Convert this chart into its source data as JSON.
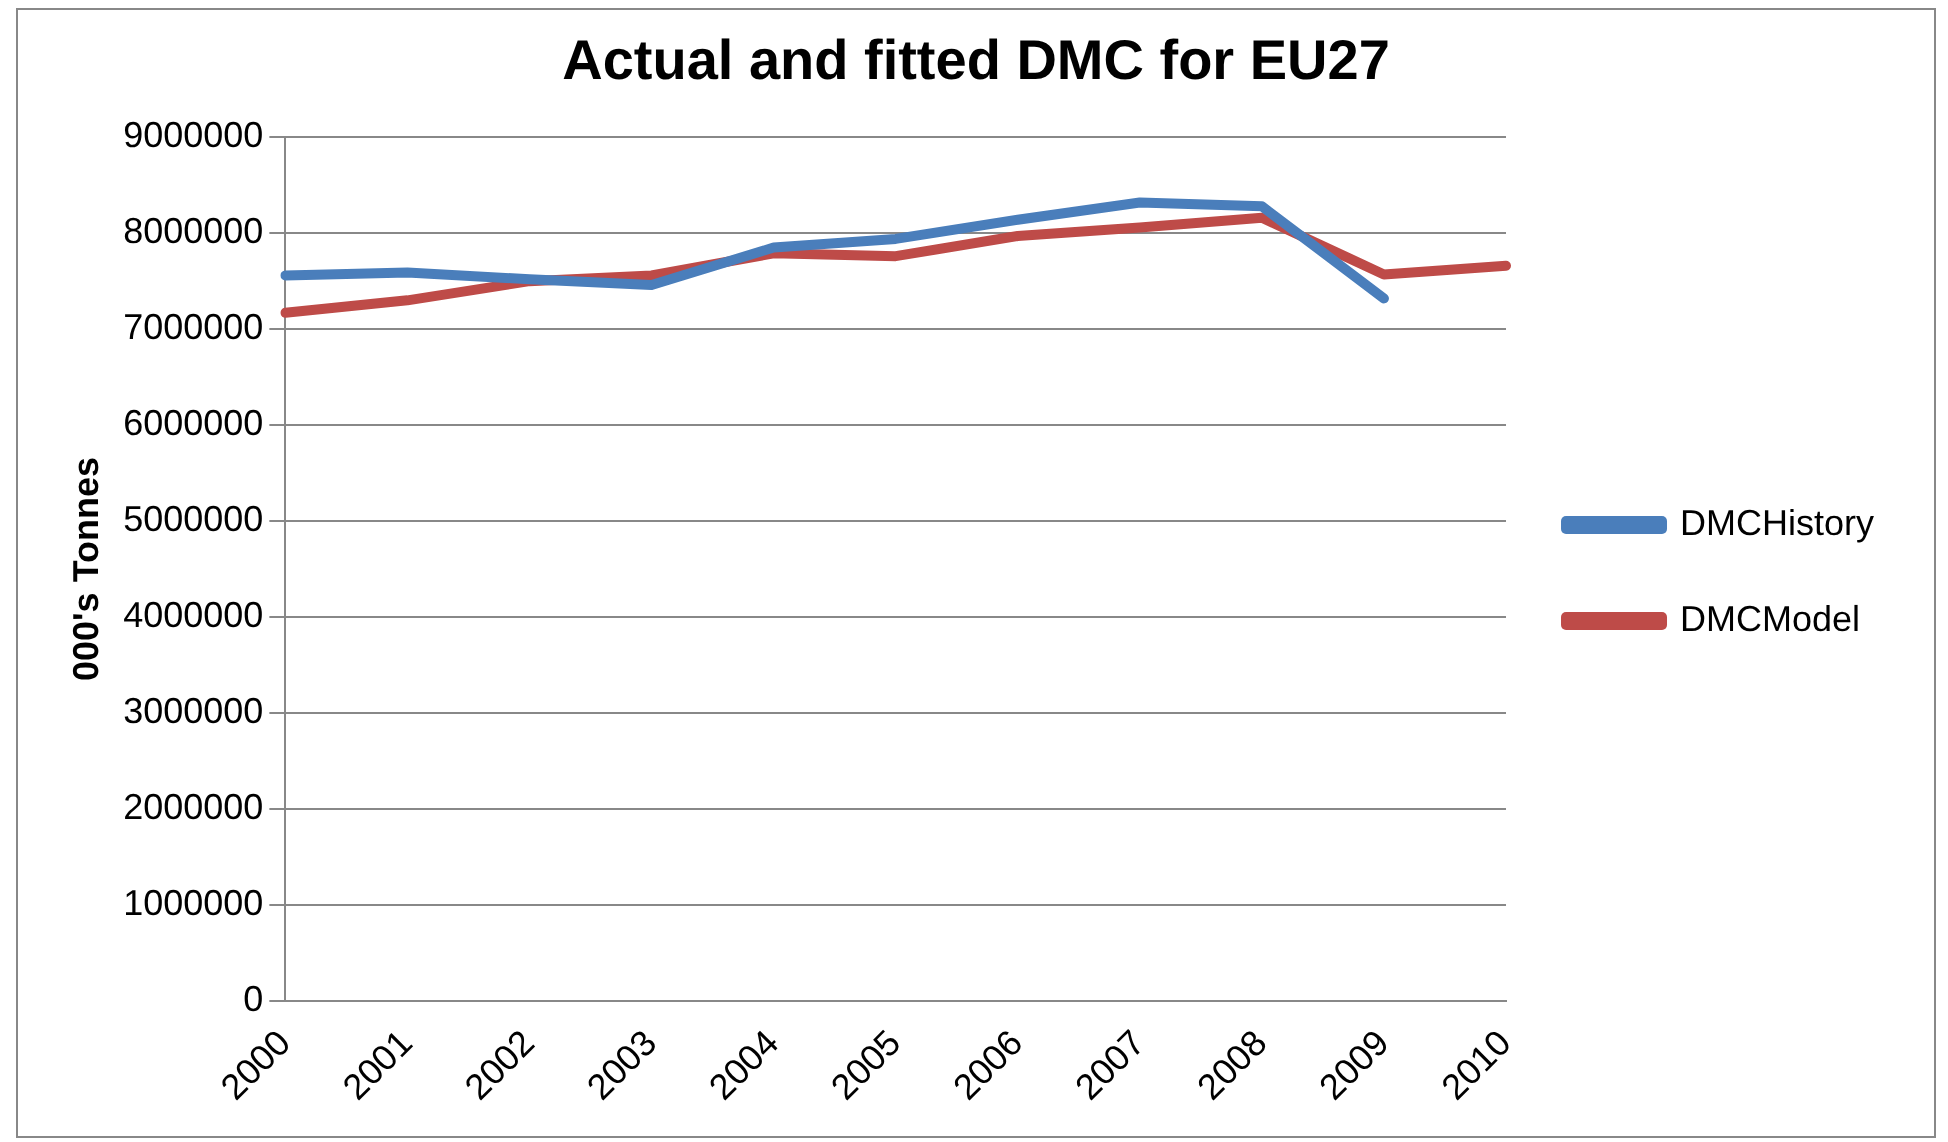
{
  "chart_data": {
    "type": "line",
    "title": "Actual and fitted DMC for EU27",
    "ylabel": "000's Tonnes",
    "categories": [
      "2000",
      "2001",
      "2002",
      "2003",
      "2004",
      "2005",
      "2006",
      "2007",
      "2008",
      "2009",
      "2010"
    ],
    "series": [
      {
        "name": "DMCHistory",
        "color": "#4a7ebb",
        "values": [
          7560000,
          7590000,
          7520000,
          7460000,
          7850000,
          7940000,
          8140000,
          8320000,
          8280000,
          7320000,
          null
        ]
      },
      {
        "name": "DMCModel",
        "color": "#be4b48",
        "values": [
          7170000,
          7300000,
          7500000,
          7560000,
          7790000,
          7760000,
          7970000,
          8060000,
          8160000,
          7570000,
          7660000
        ]
      }
    ],
    "ylim": [
      0,
      9000000
    ],
    "yticks": [
      0,
      1000000,
      2000000,
      3000000,
      4000000,
      5000000,
      6000000,
      7000000,
      8000000,
      9000000
    ],
    "grid": "y",
    "legend": "right",
    "marker": "none",
    "line_style": "solid"
  }
}
